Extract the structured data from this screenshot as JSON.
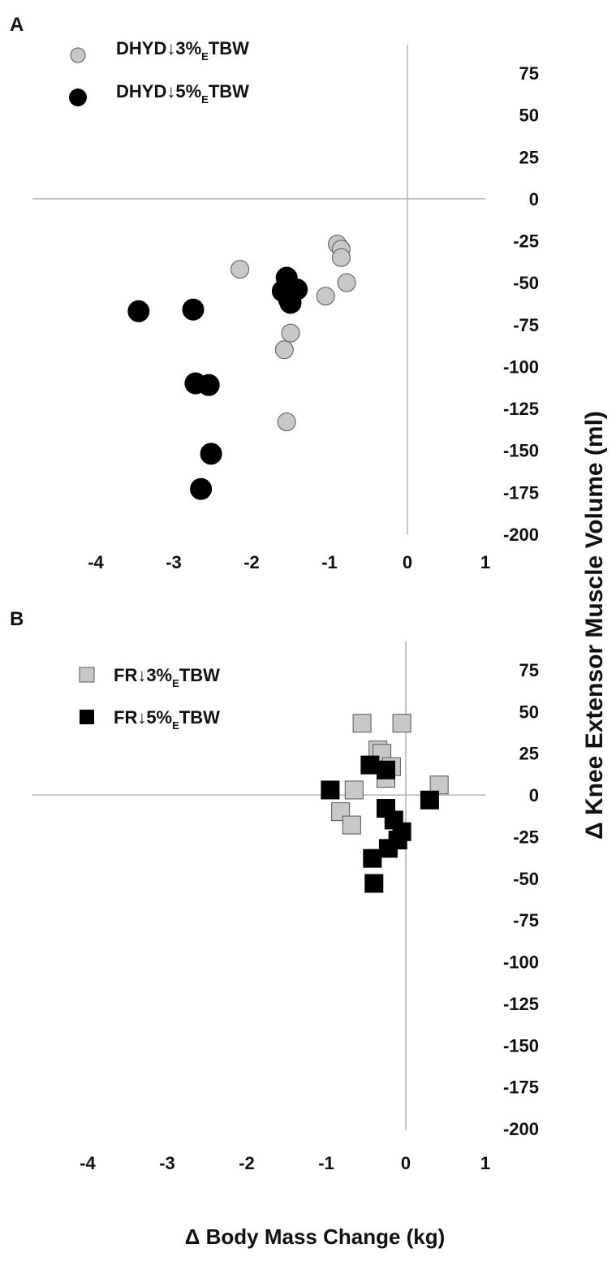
{
  "figure": {
    "y_axis_label": "Δ Knee Extensor Muscle Volume (ml)",
    "x_axis_label": "Δ Body Mass Change (kg)"
  },
  "colors": {
    "light_marker": "#c8c8c8",
    "dark_marker": "#000000",
    "axis_line": "#b4b4b4",
    "text": "#111111"
  },
  "chart_data": [
    {
      "panel_label": "A",
      "type": "scatter",
      "xlim": [
        -4,
        1
      ],
      "ylim": [
        -200,
        75
      ],
      "x_ticks": [
        "-4",
        "-3",
        "-2",
        "-1",
        "0",
        "1"
      ],
      "y_ticks": [
        "75",
        "50",
        "25",
        "0",
        "-25",
        "-50",
        "-75",
        "-100",
        "-125",
        "-150",
        "-175",
        "-200"
      ],
      "series": [
        {
          "name": "DHYD↓3%ETBW",
          "legend": {
            "prefix": "DHYD↓3%",
            "sub": "E",
            "suffix": "TBW"
          },
          "marker": "circle",
          "color": "#c8c8c8",
          "points": [
            {
              "x": -0.9,
              "y": -27
            },
            {
              "x": -0.85,
              "y": -30
            },
            {
              "x": -0.85,
              "y": -35
            },
            {
              "x": -0.78,
              "y": -50
            },
            {
              "x": -1.05,
              "y": -58
            },
            {
              "x": -2.15,
              "y": -42
            },
            {
              "x": -1.5,
              "y": -80
            },
            {
              "x": -1.58,
              "y": -90
            },
            {
              "x": -1.55,
              "y": -133
            }
          ]
        },
        {
          "name": "DHYD↓5%ETBW",
          "legend": {
            "prefix": "DHYD↓5%",
            "sub": "E",
            "suffix": "TBW"
          },
          "marker": "circle",
          "color": "#000000",
          "points": [
            {
              "x": -1.55,
              "y": -47
            },
            {
              "x": -1.6,
              "y": -55
            },
            {
              "x": -1.42,
              "y": -54
            },
            {
              "x": -1.52,
              "y": -60
            },
            {
              "x": -1.5,
              "y": -62
            },
            {
              "x": -3.45,
              "y": -67
            },
            {
              "x": -2.75,
              "y": -66
            },
            {
              "x": -2.72,
              "y": -110
            },
            {
              "x": -2.55,
              "y": -111
            },
            {
              "x": -2.52,
              "y": -152
            },
            {
              "x": -2.65,
              "y": -173
            }
          ]
        }
      ]
    },
    {
      "panel_label": "B",
      "type": "scatter",
      "xlim": [
        -4,
        1
      ],
      "ylim": [
        -200,
        75
      ],
      "x_ticks": [
        "-4",
        "-3",
        "-2",
        "-1",
        "0",
        "1"
      ],
      "y_ticks": [
        "75",
        "50",
        "25",
        "0",
        "-25",
        "-50",
        "-75",
        "-100",
        "-125",
        "-150",
        "-175",
        "-200"
      ],
      "series": [
        {
          "name": "FR↓3%ETBW",
          "legend": {
            "prefix": "FR↓3%",
            "sub": "E",
            "suffix": "TBW"
          },
          "marker": "square",
          "color": "#c8c8c8",
          "points": [
            {
              "x": -0.55,
              "y": 43
            },
            {
              "x": -0.05,
              "y": 43
            },
            {
              "x": -0.35,
              "y": 27
            },
            {
              "x": -0.3,
              "y": 25
            },
            {
              "x": -0.18,
              "y": 17
            },
            {
              "x": -0.25,
              "y": 10
            },
            {
              "x": -0.65,
              "y": 3
            },
            {
              "x": 0.42,
              "y": 6
            },
            {
              "x": -0.82,
              "y": -10
            },
            {
              "x": -0.68,
              "y": -18
            }
          ]
        },
        {
          "name": "FR↓5%ETBW",
          "legend": {
            "prefix": "FR↓5%",
            "sub": "E",
            "suffix": "TBW"
          },
          "marker": "square",
          "color": "#000000",
          "points": [
            {
              "x": -0.45,
              "y": 18
            },
            {
              "x": -0.25,
              "y": 15
            },
            {
              "x": -0.95,
              "y": 3
            },
            {
              "x": 0.3,
              "y": -3
            },
            {
              "x": -0.25,
              "y": -8
            },
            {
              "x": -0.15,
              "y": -15
            },
            {
              "x": -0.05,
              "y": -22
            },
            {
              "x": -0.1,
              "y": -27
            },
            {
              "x": -0.22,
              "y": -32
            },
            {
              "x": -0.42,
              "y": -38
            },
            {
              "x": -0.4,
              "y": -53
            }
          ]
        }
      ]
    }
  ]
}
